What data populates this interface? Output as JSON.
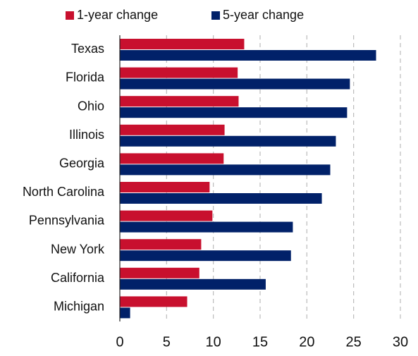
{
  "chart_data": {
    "type": "hbar",
    "categories": [
      "Texas",
      "Florida",
      "Ohio",
      "Illinois",
      "Georgia",
      "North Carolina",
      "Pennsylvania",
      "New York",
      "California",
      "Michigan"
    ],
    "series": [
      {
        "name": "1-year change",
        "color": "#c8102e",
        "values": [
          13.3,
          12.6,
          12.7,
          11.2,
          11.1,
          9.6,
          9.9,
          8.7,
          8.5,
          7.2
        ]
      },
      {
        "name": "5-year change",
        "color": "#012169",
        "values": [
          27.4,
          24.6,
          24.3,
          23.1,
          22.5,
          21.6,
          18.5,
          18.3,
          15.6,
          1.1
        ]
      }
    ],
    "xlim": [
      0,
      30
    ],
    "xticks": [
      0,
      5,
      10,
      15,
      20,
      25,
      30
    ],
    "grid": true,
    "legend": "top"
  }
}
